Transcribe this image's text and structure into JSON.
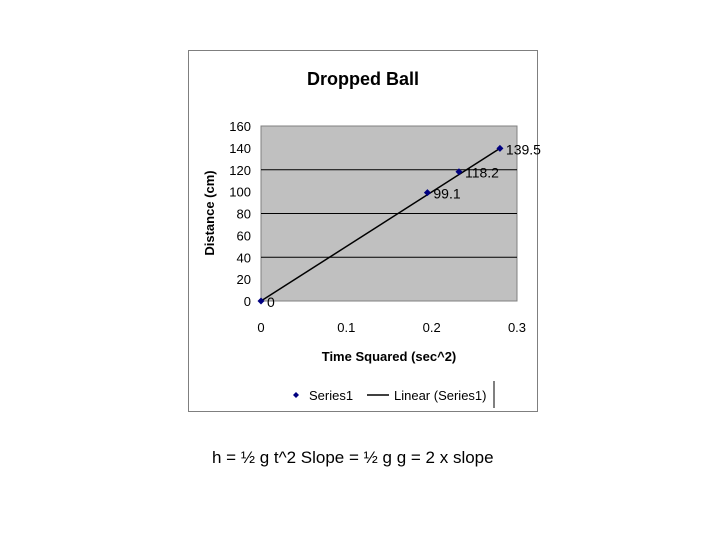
{
  "caption": "h = ½ g t^2   Slope = ½ g   g = 2 x slope",
  "colors": {
    "plot_area": "#c0c0c0",
    "gridline": "#000000",
    "marker": "#000080",
    "trendline": "#000000",
    "label": "#000000"
  },
  "chart_data": {
    "type": "scatter",
    "title": "Dropped Ball",
    "xlabel": "Time Squared (sec^2)",
    "ylabel": "Distance (cm)",
    "xlim": [
      0,
      0.3
    ],
    "ylim": [
      0,
      160
    ],
    "xticks": [
      0,
      0.1,
      0.2,
      0.3
    ],
    "xtick_labels": [
      "0",
      "0.1",
      "0.2",
      "0.3"
    ],
    "yticks": [
      0,
      20,
      40,
      60,
      80,
      100,
      120,
      140,
      160
    ],
    "ytick_labels": [
      "0",
      "20",
      "40",
      "60",
      "80",
      "100",
      "120",
      "140",
      "160"
    ],
    "grid": "horizontal major gridlines",
    "legend_position": "bottom",
    "series": [
      {
        "name": "Series1",
        "marker": "diamond",
        "x": [
          0,
          0.195,
          0.232,
          0.28
        ],
        "y": [
          0,
          99.1,
          118.2,
          139.5
        ],
        "data_labels": [
          "0",
          "99.1",
          "118.2",
          "139.5"
        ]
      }
    ],
    "trendline": {
      "name": "Linear (Series1)",
      "type": "linear",
      "x": [
        0,
        0.28
      ],
      "y": [
        0,
        139.5
      ]
    },
    "legend": [
      "Series1",
      "Linear (Series1)"
    ]
  }
}
